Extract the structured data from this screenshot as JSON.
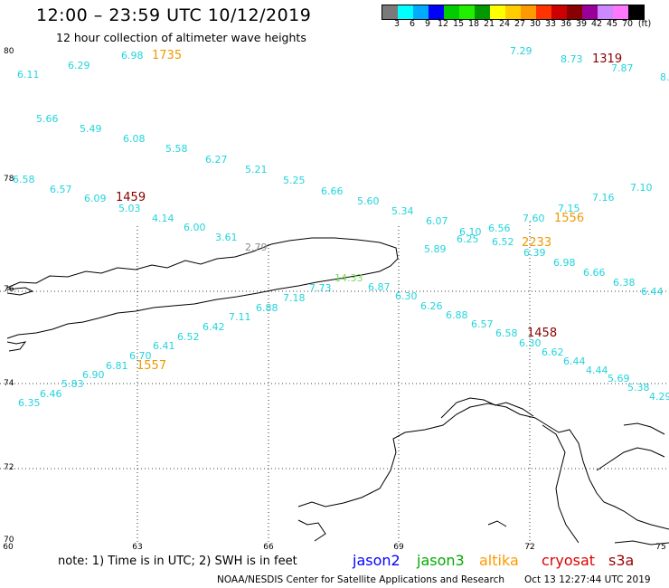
{
  "title": "12:00 – 23:59 UTC 10/12/2019",
  "subtitle": "12 hour collection of altimeter wave heights",
  "legend": {
    "colors": [
      "#7a7a7a",
      "#00ffff",
      "#00aaff",
      "#0000ff",
      "#00cc00",
      "#22ee00",
      "#009900",
      "#ffff00",
      "#ffcc00",
      "#ff9900",
      "#ff3300",
      "#cc0000",
      "#880000",
      "#990099",
      "#cc88ff",
      "#ff77ff",
      "#000000"
    ],
    "labels": [
      "3",
      "6",
      "9",
      "12",
      "15",
      "18",
      "21",
      "24",
      "27",
      "30",
      "33",
      "36",
      "39",
      "42",
      "45",
      "70",
      "(ft)"
    ]
  },
  "lat_labels": [
    "80",
    "78",
    "76",
    "74",
    "72",
    "70"
  ],
  "lon_labels": [
    "60",
    "63",
    "66",
    "69",
    "72",
    "75"
  ],
  "wave_heights": [
    {
      "text": "6.98",
      "color": "#22d4dc"
    },
    {
      "text": "6.29",
      "color": "#22d4dc"
    },
    {
      "text": "6.11",
      "color": "#22d4dc"
    },
    {
      "text": "5.66",
      "color": "#22d4dc"
    },
    {
      "text": "5.49",
      "color": "#22d4dc"
    },
    {
      "text": "6.08",
      "color": "#22d4dc"
    },
    {
      "text": "5.58",
      "color": "#22d4dc"
    },
    {
      "text": "6.27",
      "color": "#22d4dc"
    },
    {
      "text": "5.21",
      "color": "#22d4dc"
    },
    {
      "text": "5.25",
      "color": "#22d4dc"
    },
    {
      "text": "6.66",
      "color": "#22d4dc"
    },
    {
      "text": "5.60",
      "color": "#22d4dc"
    },
    {
      "text": "5.34",
      "color": "#22d4dc"
    },
    {
      "text": "6.58",
      "color": "#22d4dc"
    },
    {
      "text": "6.57",
      "color": "#22d4dc"
    },
    {
      "text": "6.09",
      "color": "#22d4dc"
    },
    {
      "text": "5.03",
      "color": "#22d4dc"
    },
    {
      "text": "4.14",
      "color": "#22d4dc"
    },
    {
      "text": "6.00",
      "color": "#22d4dc"
    },
    {
      "text": "3.61",
      "color": "#22d4dc"
    },
    {
      "text": "2.79",
      "color": "#888888"
    },
    {
      "text": "7.29",
      "color": "#22d4dc"
    },
    {
      "text": "8.73",
      "color": "#22d4dc"
    },
    {
      "text": "7.87",
      "color": "#22d4dc"
    },
    {
      "text": "8.",
      "color": "#22d4dc"
    },
    {
      "text": "7.16",
      "color": "#22d4dc"
    },
    {
      "text": "7.10",
      "color": "#22d4dc"
    },
    {
      "text": "7.15",
      "color": "#22d4dc"
    },
    {
      "text": "7.60",
      "color": "#22d4dc"
    },
    {
      "text": "6.56",
      "color": "#22d4dc"
    },
    {
      "text": "6.10",
      "color": "#22d4dc"
    },
    {
      "text": "6.07",
      "color": "#22d4dc"
    },
    {
      "text": "6.25",
      "color": "#22d4dc"
    },
    {
      "text": "6.52",
      "color": "#22d4dc"
    },
    {
      "text": "5.89",
      "color": "#22d4dc"
    },
    {
      "text": "6.39",
      "color": "#22d4dc"
    },
    {
      "text": "6.98",
      "color": "#22d4dc"
    },
    {
      "text": "6.66",
      "color": "#22d4dc"
    },
    {
      "text": "6.38",
      "color": "#22d4dc"
    },
    {
      "text": "6.44",
      "color": "#22d4dc"
    },
    {
      "text": "14.33",
      "color": "#77dd55"
    },
    {
      "text": "7.73",
      "color": "#22d4dc"
    },
    {
      "text": "6.87",
      "color": "#22d4dc"
    },
    {
      "text": "7.18",
      "color": "#22d4dc"
    },
    {
      "text": "6.30",
      "color": "#22d4dc"
    },
    {
      "text": "6.88",
      "color": "#22d4dc"
    },
    {
      "text": "6.26",
      "color": "#22d4dc"
    },
    {
      "text": "6.88",
      "color": "#22d4dc"
    },
    {
      "text": "7.11",
      "color": "#22d4dc"
    },
    {
      "text": "6.57",
      "color": "#22d4dc"
    },
    {
      "text": "6.42",
      "color": "#22d4dc"
    },
    {
      "text": "6.58",
      "color": "#22d4dc"
    },
    {
      "text": "6.52",
      "color": "#22d4dc"
    },
    {
      "text": "6.30",
      "color": "#22d4dc"
    },
    {
      "text": "6.41",
      "color": "#22d4dc"
    },
    {
      "text": "6.62",
      "color": "#22d4dc"
    },
    {
      "text": "6.70",
      "color": "#22d4dc"
    },
    {
      "text": "6.44",
      "color": "#22d4dc"
    },
    {
      "text": "6.81",
      "color": "#22d4dc"
    },
    {
      "text": "4.44",
      "color": "#22d4dc"
    },
    {
      "text": "6.90",
      "color": "#22d4dc"
    },
    {
      "text": "5.69",
      "color": "#22d4dc"
    },
    {
      "text": "5.83",
      "color": "#22d4dc"
    },
    {
      "text": "5.38",
      "color": "#22d4dc"
    },
    {
      "text": "6.46",
      "color": "#22d4dc"
    },
    {
      "text": "4.29",
      "color": "#22d4dc"
    },
    {
      "text": "6.35",
      "color": "#22d4dc"
    }
  ],
  "time_labels": [
    {
      "text": "1735",
      "color": "#ee9900"
    },
    {
      "text": "1319",
      "color": "#880000"
    },
    {
      "text": "1459",
      "color": "#880000"
    },
    {
      "text": "1556",
      "color": "#ee9900"
    },
    {
      "text": "2233",
      "color": "#ee9900"
    },
    {
      "text": "1458",
      "color": "#880000"
    },
    {
      "text": "1557",
      "color": "#ee9900"
    }
  ],
  "note": "note:  1) Time is in UTC;  2) SWH is in feet",
  "satellites": [
    {
      "name": "jason2",
      "color": "#0000ff"
    },
    {
      "name": "jason3",
      "color": "#00aa00"
    },
    {
      "name": "altika",
      "color": "#ff9900"
    },
    {
      "name": "cryosat",
      "color": "#dd0000"
    },
    {
      "name": "s3a",
      "color": "#990000"
    }
  ],
  "credit": "NOAA/NESDIS Center for Satellite Applications and Research",
  "timestamp": "Oct 13 12:27:44 UTC 2019"
}
